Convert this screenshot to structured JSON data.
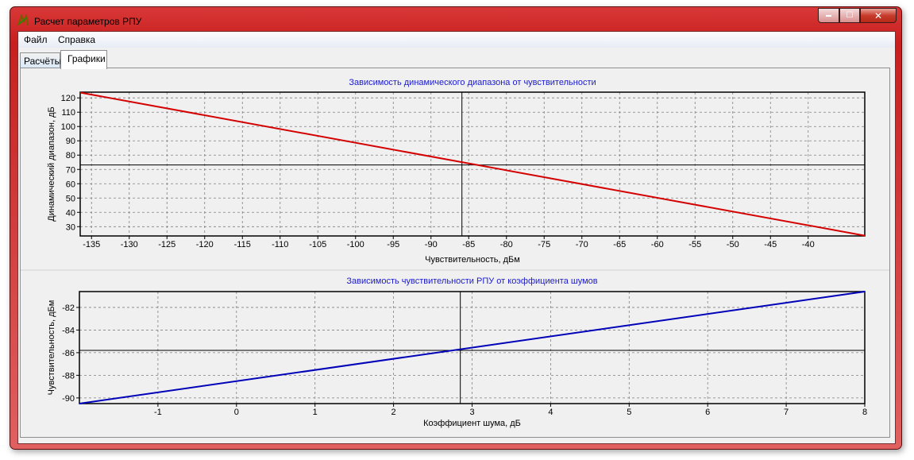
{
  "window": {
    "title": "Расчет параметров РПУ",
    "min_glyph": "▬",
    "max_glyph": "☐",
    "close_glyph": "✕"
  },
  "menu": {
    "items": [
      "Файл",
      "Справка"
    ]
  },
  "tabs": [
    {
      "label": "Расчёты",
      "active": false
    },
    {
      "label": "Графики",
      "active": true
    }
  ],
  "colors": {
    "series1": "#d40000",
    "series2": "#0000b8",
    "title": "#1a1ad0"
  },
  "chart_data": [
    {
      "type": "line",
      "title": "Зависимость динамического диапазона от чувствительности",
      "xlabel": "Чувствительность, дБм",
      "ylabel": "Динамический диапазон, дБ",
      "xlim": [
        -136.5,
        -32.5
      ],
      "ylim": [
        23.5,
        124
      ],
      "xticks": [
        -135,
        -130,
        -125,
        -120,
        -115,
        -110,
        -105,
        -100,
        -95,
        -90,
        -85,
        -80,
        -75,
        -70,
        -65,
        -60,
        -55,
        -50,
        -45,
        -40
      ],
      "yticks": [
        30,
        40,
        50,
        60,
        70,
        80,
        90,
        100,
        110,
        120
      ],
      "grid": true,
      "cursor": {
        "x": -85.9,
        "y": 73.1
      },
      "series": [
        {
          "x": [
            -136.5,
            -32.5
          ],
          "y": [
            123.7,
            23.7
          ]
        }
      ]
    },
    {
      "type": "line",
      "title": "Зависимость чувствительности РПУ от коэффициента шумов",
      "xlabel": "Коэффициент шума, дБ",
      "ylabel": "Чувствительность, дБм",
      "xlim": [
        -2,
        8
      ],
      "ylim": [
        -90.5,
        -80.6
      ],
      "xticks": [
        -1,
        0,
        1,
        2,
        3,
        4,
        5,
        6,
        7,
        8
      ],
      "yticks": [
        -90,
        -88,
        -86,
        -84,
        -82
      ],
      "grid": true,
      "cursor": {
        "x": 2.85,
        "y": -85.8
      },
      "series": [
        {
          "x": [
            -2,
            8
          ],
          "y": [
            -90.5,
            -80.6
          ]
        }
      ]
    }
  ]
}
